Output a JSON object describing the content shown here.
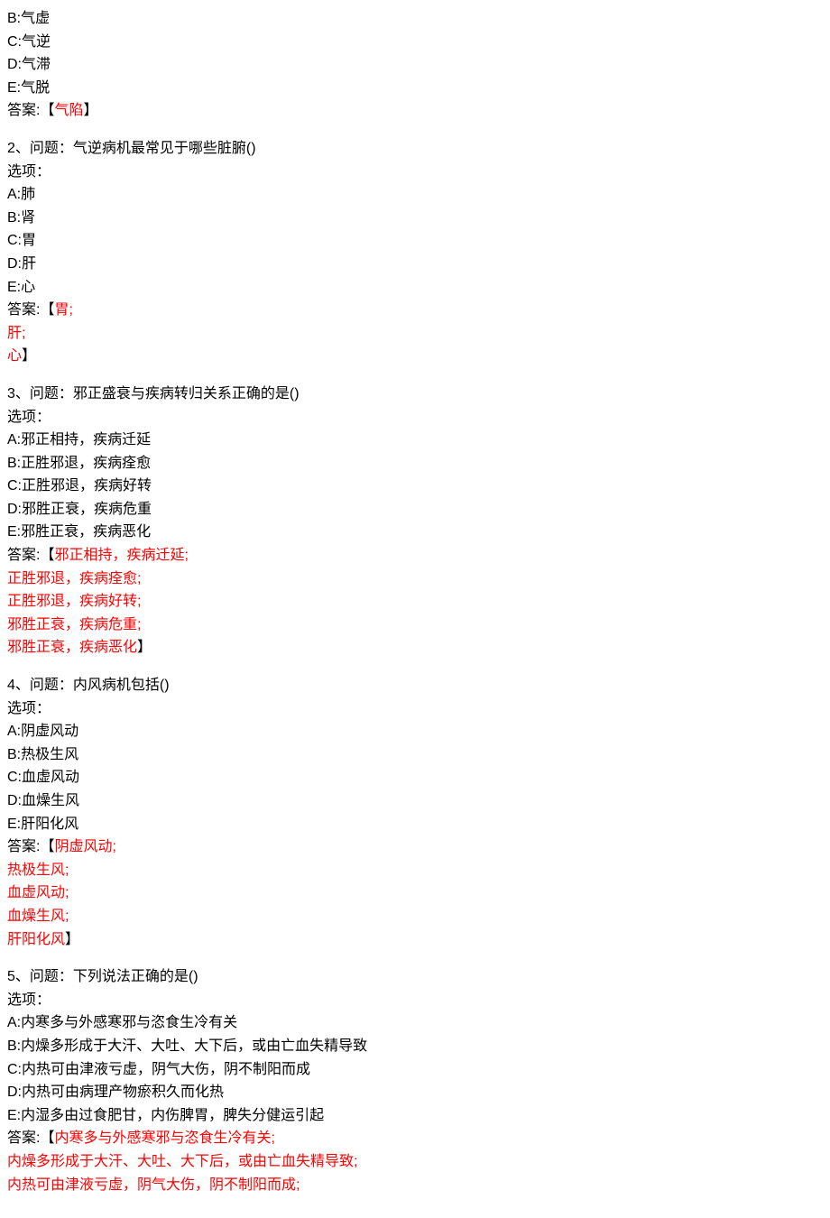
{
  "colors": {
    "text": "#000000",
    "answer": "#ff0000",
    "background": "#ffffff"
  },
  "typography": {
    "font_family": "Microsoft YaHei, SimSun, sans-serif",
    "font_size_pt": 12,
    "line_height": 1.6
  },
  "q1_partial": {
    "options": {
      "B": "B:气虚",
      "C": "C:气逆",
      "D": "D:气滞",
      "E": "E:气脱"
    },
    "answer_prefix": "答案:【",
    "answer_text": "气陷",
    "answer_suffix": "】"
  },
  "q2": {
    "header": "2、问题：气逆病机最常见于哪些脏腑()",
    "options_label": "选项：",
    "options": {
      "A": "A:肺",
      "B": "B:肾",
      "C": "C:胃",
      "D": "D:肝",
      "E": "E:心"
    },
    "answer_prefix": "答案:【",
    "answer_lines": [
      "胃;",
      "肝;",
      "心"
    ],
    "answer_suffix": "】"
  },
  "q3": {
    "header": "3、问题：邪正盛衰与疾病转归关系正确的是()",
    "options_label": "选项：",
    "options": {
      "A": "A:邪正相持，疾病迁延",
      "B": "B:正胜邪退，疾病痊愈",
      "C": "C:正胜邪退，疾病好转",
      "D": "D:邪胜正衰，疾病危重",
      "E": "E:邪胜正衰，疾病恶化"
    },
    "answer_prefix": "答案:【",
    "answer_lines": [
      "邪正相持，疾病迁延;",
      "正胜邪退，疾病痊愈;",
      "正胜邪退，疾病好转;",
      "邪胜正衰，疾病危重;",
      "邪胜正衰，疾病恶化"
    ],
    "answer_suffix": "】"
  },
  "q4": {
    "header": "4、问题：内风病机包括()",
    "options_label": "选项：",
    "options": {
      "A": "A:阴虚风动",
      "B": "B:热极生风",
      "C": "C:血虚风动",
      "D": "D:血燥生风",
      "E": "E:肝阳化风"
    },
    "answer_prefix": "答案:【",
    "answer_lines": [
      "阴虚风动;",
      "热极生风;",
      "血虚风动;",
      "血燥生风;",
      "肝阳化风"
    ],
    "answer_suffix": "】"
  },
  "q5": {
    "header": "5、问题：下列说法正确的是()",
    "options_label": "选项：",
    "options": {
      "A": "A:内寒多与外感寒邪与恣食生冷有关",
      "B": "B:内燥多形成于大汗、大吐、大下后，或由亡血失精导致",
      "C": "C:内热可由津液亏虚，阴气大伤，阴不制阳而成",
      "D": "D:内热可由病理产物瘀积久而化热",
      "E": "E:内湿多由过食肥甘，内伤脾胃，脾失分健运引起"
    },
    "answer_prefix": "答案:【",
    "answer_lines": [
      "内寒多与外感寒邪与恣食生冷有关;",
      "内燥多形成于大汗、大吐、大下后，或由亡血失精导致;",
      "内热可由津液亏虚，阴气大伤，阴不制阳而成;"
    ]
  }
}
